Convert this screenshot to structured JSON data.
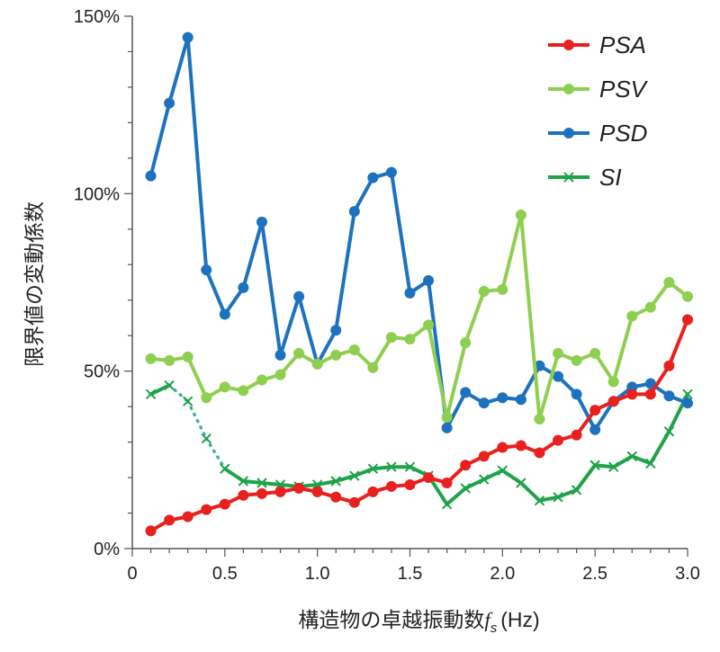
{
  "chart_data": {
    "type": "line",
    "xlabel": "構造物の卓越振動数",
    "xlabel_symbol": "f",
    "xlabel_subscript": "s",
    "xlabel_unit": "(Hz)",
    "ylabel": "限界値の変動係数",
    "xlim": [
      0,
      3.0
    ],
    "ylim": [
      0,
      150
    ],
    "x_ticks": [
      0,
      0.5,
      1.0,
      1.5,
      2.0,
      2.5,
      3.0
    ],
    "x_tick_labels": [
      "0",
      "0.5",
      "1.0",
      "1.5",
      "2.0",
      "2.5",
      "3.0"
    ],
    "y_ticks": [
      0,
      50,
      100,
      150
    ],
    "y_tick_labels": [
      "0%",
      "50%",
      "100%",
      "150%"
    ],
    "grid": false,
    "legend_position": "top-right",
    "x": [
      0.1,
      0.2,
      0.3,
      0.4,
      0.5,
      0.6,
      0.7,
      0.8,
      0.9,
      1.0,
      1.1,
      1.2,
      1.3,
      1.4,
      1.5,
      1.6,
      1.7,
      1.8,
      1.9,
      2.0,
      2.1,
      2.2,
      2.3,
      2.4,
      2.5,
      2.6,
      2.7,
      2.8,
      2.9,
      3.0
    ],
    "series": [
      {
        "name": "PSA",
        "color": "#e8201e",
        "marker": "circle",
        "values": [
          5,
          8,
          9,
          11,
          12.5,
          15,
          15.5,
          16,
          17,
          16,
          14.5,
          13,
          16,
          17.5,
          18,
          20,
          18.5,
          23.5,
          26,
          28.5,
          29,
          27,
          30.5,
          32,
          39,
          41.5,
          43.5,
          43.5,
          51.5,
          64.5
        ]
      },
      {
        "name": "PSV",
        "color": "#8fcf4f",
        "marker": "circle",
        "values": [
          53.5,
          53,
          54,
          42.5,
          45.5,
          44.5,
          47.5,
          49,
          55,
          52,
          54.5,
          56,
          51,
          59.5,
          59,
          63,
          37,
          58,
          72.5,
          73,
          94,
          36.5,
          55,
          53,
          55,
          47,
          65.5,
          68,
          75,
          71
        ]
      },
      {
        "name": "PSD",
        "color": "#1d72bf",
        "marker": "circle",
        "values": [
          105,
          125.5,
          144,
          78.5,
          66,
          73.5,
          92,
          54.5,
          71,
          52,
          61.5,
          95,
          104.5,
          106,
          72,
          75.5,
          34,
          44,
          41,
          42.5,
          42,
          51.5,
          48.5,
          43.5,
          33.5,
          41.5,
          45.5,
          46.5,
          43,
          41
        ]
      },
      {
        "name": "SI",
        "color": "#1fa24a",
        "marker": "x",
        "values": [
          43.5,
          46,
          41.5,
          31,
          22.5,
          19,
          18.5,
          18,
          17.5,
          18,
          19,
          20.5,
          22.5,
          23,
          23,
          20.5,
          12.5,
          17,
          19.5,
          22,
          18.5,
          13.5,
          14.5,
          16.5,
          23.5,
          23,
          26,
          24,
          33,
          43.5
        ],
        "dotted_segment_x": [
          0.2,
          0.5
        ]
      }
    ]
  }
}
